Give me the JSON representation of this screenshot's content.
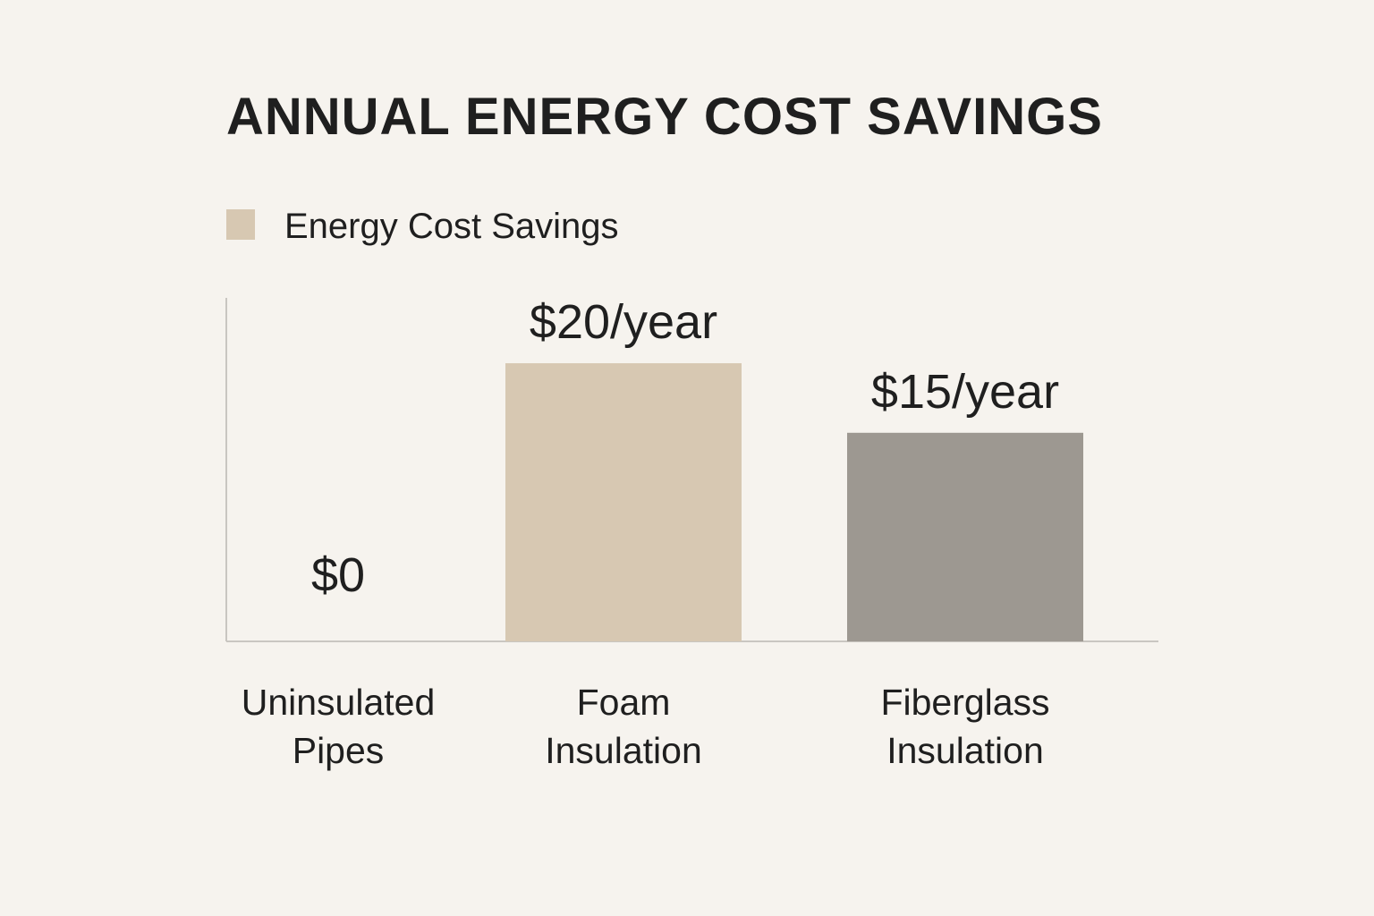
{
  "chart_data": {
    "type": "bar",
    "title": "ANNUAL ENERGY COST SAVINGS",
    "legend": [
      "Energy Cost Savings"
    ],
    "categories": [
      [
        "Uninsulated",
        "Pipes"
      ],
      [
        "Foam",
        "Insulation"
      ],
      [
        "Fiberglass",
        "Insulation"
      ]
    ],
    "values": [
      0,
      20,
      15
    ],
    "value_labels": [
      "$0",
      "$20/year",
      "$15/year"
    ],
    "unit": "$/year",
    "xlabel": "",
    "ylabel": "",
    "ylim": [
      0,
      24.7
    ],
    "grid": false,
    "legend_position": "top-left",
    "colors": {
      "background": "#f6f3ee",
      "text": "#1f1f1f",
      "axis": "#c9c6c1",
      "legend_swatch": "#d7c8b2",
      "bars": [
        "#d7c8b2",
        "#d7c8b2",
        "#9d9891"
      ]
    }
  }
}
